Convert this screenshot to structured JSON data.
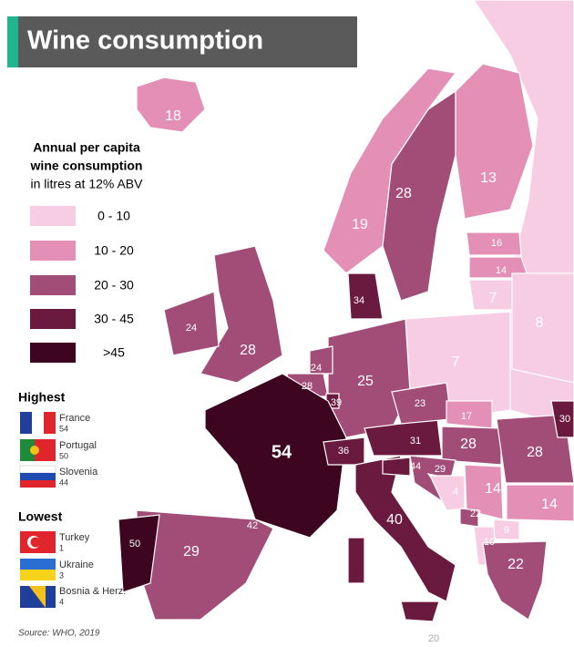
{
  "title": "Wine consumption",
  "legend": {
    "title": [
      "Annual per capita",
      "wine consumption",
      "in litres at 12% ABV"
    ],
    "items": [
      "0 - 10",
      "10 - 20",
      "20 - 30",
      "30 - 45",
      ">45"
    ]
  },
  "highest": {
    "heading": "Highest",
    "entries": [
      {
        "country": "France",
        "value": 54
      },
      {
        "country": "Portugal",
        "value": 50
      },
      {
        "country": "Slovenia",
        "value": 44
      }
    ]
  },
  "lowest": {
    "heading": "Lowest",
    "entries": [
      {
        "country": "Turkey",
        "value": 1
      },
      {
        "country": "Ukraine",
        "value": 3
      },
      {
        "country": "Bosnia & Herz.",
        "value": 4
      }
    ]
  },
  "source": "Source: WHO, 2019",
  "map_labels": [
    18,
    28,
    13,
    19,
    16,
    14,
    7,
    8,
    34,
    24,
    28,
    7,
    24,
    28,
    39,
    25,
    23,
    17,
    31,
    28,
    28,
    36,
    54,
    44,
    29,
    4,
    14,
    14,
    22,
    9,
    10,
    22,
    40,
    42,
    29,
    50,
    20,
    30
  ]
}
